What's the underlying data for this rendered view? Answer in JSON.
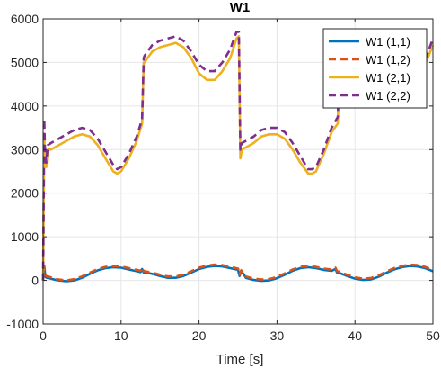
{
  "chart_data": {
    "type": "line",
    "title": "W1",
    "xlabel": "Time [s]",
    "ylabel": "",
    "xlim": [
      0,
      50
    ],
    "ylim": [
      -1000,
      6000
    ],
    "xticks": [
      0,
      10,
      20,
      30,
      40,
      50
    ],
    "xtick_labels": [
      "0",
      "10",
      "20",
      "30",
      "40",
      "50"
    ],
    "yticks": [
      -1000,
      0,
      1000,
      2000,
      3000,
      4000,
      5000,
      6000
    ],
    "ytick_labels": [
      "-1000",
      "0",
      "1000",
      "2000",
      "3000",
      "4000",
      "5000",
      "6000"
    ],
    "grid": true,
    "legend_position": "top-right",
    "series": [
      {
        "name": "W1 (1,1)",
        "color": "#0072BD",
        "style": "solid",
        "x": [
          0,
          0.15,
          0.3,
          0.5,
          1,
          1.5,
          2,
          3,
          4,
          5,
          6,
          7,
          8,
          9,
          10,
          11,
          12,
          12.5,
          12.7,
          12.9,
          13,
          14,
          15,
          16,
          17,
          18,
          19,
          20,
          21,
          22,
          23,
          24,
          25,
          25.2,
          25.4,
          25.7,
          26,
          27,
          28,
          29,
          30,
          31,
          32,
          33,
          34,
          35,
          36,
          37,
          37.5,
          37.7,
          38,
          39,
          40,
          41,
          42,
          43,
          44,
          45,
          46,
          47,
          48,
          49,
          50
        ],
        "y": [
          0,
          300,
          80,
          60,
          40,
          15,
          0,
          -20,
          0,
          60,
          150,
          230,
          280,
          300,
          290,
          250,
          210,
          190,
          260,
          180,
          185,
          150,
          100,
          60,
          60,
          100,
          180,
          260,
          310,
          330,
          320,
          280,
          240,
          100,
          200,
          150,
          60,
          10,
          -10,
          0,
          50,
          130,
          220,
          280,
          300,
          280,
          240,
          220,
          260,
          180,
          170,
          100,
          40,
          10,
          20,
          80,
          170,
          250,
          300,
          330,
          320,
          280,
          210
        ]
      },
      {
        "name": "W1 (1,2)",
        "color": "#D95319",
        "style": "dashed",
        "x": [
          0,
          0.15,
          0.3,
          0.5,
          1,
          1.5,
          2,
          3,
          4,
          5,
          6,
          7,
          8,
          9,
          10,
          11,
          12,
          12.5,
          12.7,
          12.9,
          13,
          14,
          15,
          16,
          17,
          18,
          19,
          20,
          21,
          22,
          23,
          24,
          25,
          25.2,
          25.4,
          25.7,
          26,
          27,
          28,
          29,
          30,
          31,
          32,
          33,
          34,
          35,
          36,
          37,
          37.5,
          37.7,
          38,
          39,
          40,
          41,
          42,
          43,
          44,
          45,
          46,
          47,
          48,
          49,
          50
        ],
        "y": [
          0,
          330,
          120,
          90,
          70,
          40,
          20,
          0,
          30,
          90,
          180,
          260,
          310,
          330,
          320,
          280,
          240,
          220,
          290,
          210,
          210,
          180,
          130,
          90,
          90,
          130,
          210,
          290,
          340,
          360,
          350,
          310,
          270,
          130,
          230,
          180,
          90,
          40,
          20,
          30,
          80,
          160,
          250,
          310,
          330,
          310,
          270,
          250,
          290,
          210,
          200,
          130,
          70,
          40,
          50,
          110,
          200,
          280,
          330,
          360,
          350,
          310,
          240
        ]
      },
      {
        "name": "W1 (2,1)",
        "color": "#EDB120",
        "style": "solid",
        "x": [
          0,
          0.15,
          0.25,
          0.4,
          0.6,
          1,
          2,
          3,
          4,
          5,
          6,
          7,
          8,
          9,
          9.5,
          10,
          11,
          12,
          12.7,
          12.9,
          13,
          14,
          15,
          16,
          17,
          18,
          19,
          20,
          21,
          22,
          23,
          24,
          24.8,
          25.1,
          25.3,
          25.5,
          26,
          27,
          28,
          29,
          30,
          31,
          32,
          33,
          34,
          34.5,
          35,
          36,
          37,
          37.8,
          38,
          39,
          40,
          41,
          42,
          43,
          44,
          45,
          46,
          47,
          48,
          49,
          50
        ],
        "y": [
          0,
          3300,
          2800,
          2600,
          3000,
          3000,
          3100,
          3200,
          3300,
          3350,
          3300,
          3100,
          2800,
          2500,
          2450,
          2500,
          2800,
          3200,
          3600,
          5000,
          5000,
          5250,
          5350,
          5400,
          5450,
          5350,
          5100,
          4750,
          4600,
          4600,
          4800,
          5100,
          5550,
          5600,
          2800,
          3000,
          3050,
          3150,
          3300,
          3350,
          3350,
          3250,
          3000,
          2700,
          2450,
          2450,
          2500,
          2900,
          3400,
          3600,
          5000,
          5050,
          5150,
          5250,
          5400,
          5500,
          5450,
          5300,
          5000,
          4800,
          4750,
          4950,
          5400
        ]
      },
      {
        "name": "W1 (2,2)",
        "color": "#7E2F8E",
        "style": "dashed",
        "x": [
          0,
          0.15,
          0.25,
          0.4,
          0.6,
          1,
          2,
          3,
          4,
          5,
          6,
          7,
          8,
          9,
          9.5,
          10,
          11,
          12,
          12.7,
          12.9,
          13,
          14,
          15,
          16,
          17,
          18,
          19,
          20,
          21,
          22,
          23,
          24,
          24.8,
          25.1,
          25.3,
          25.5,
          26,
          27,
          28,
          29,
          30,
          31,
          32,
          33,
          34,
          34.5,
          35,
          36,
          37,
          37.8,
          38,
          39,
          40,
          41,
          42,
          43,
          44,
          45,
          46,
          47,
          48,
          49,
          50
        ],
        "y": [
          0,
          3700,
          2900,
          2700,
          3100,
          3150,
          3250,
          3350,
          3450,
          3500,
          3450,
          3250,
          2950,
          2650,
          2550,
          2600,
          2900,
          3300,
          3700,
          5100,
          5150,
          5400,
          5500,
          5550,
          5600,
          5500,
          5250,
          4950,
          4800,
          4800,
          5000,
          5300,
          5700,
          5700,
          3000,
          3150,
          3200,
          3300,
          3450,
          3500,
          3500,
          3400,
          3150,
          2850,
          2550,
          2550,
          2600,
          3000,
          3500,
          3750,
          5100,
          5150,
          5250,
          5350,
          5500,
          5600,
          5550,
          5400,
          5100,
          4900,
          4850,
          5050,
          5550
        ]
      }
    ]
  }
}
